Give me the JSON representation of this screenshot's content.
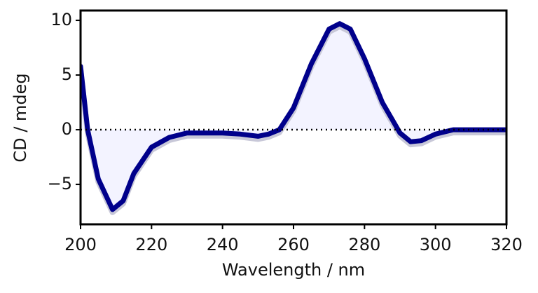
{
  "chart_data": {
    "type": "line",
    "xlabel": "Wavelength / nm",
    "ylabel": "CD / mdeg",
    "x": [
      200,
      202,
      205,
      209,
      212,
      215,
      220,
      225,
      230,
      240,
      245,
      250,
      253,
      256,
      260,
      265,
      270,
      273,
      276,
      280,
      285,
      290,
      293,
      296,
      300,
      305,
      310,
      320
    ],
    "series": [
      {
        "color": "#00008b",
        "fill": "#f3f3ff",
        "values": [
          5.8,
          0.0,
          -4.5,
          -7.3,
          -6.5,
          -4.0,
          -1.6,
          -0.7,
          -0.3,
          -0.3,
          -0.4,
          -0.6,
          -0.4,
          0.0,
          2.0,
          6.0,
          9.2,
          9.7,
          9.2,
          6.5,
          2.5,
          -0.3,
          -1.1,
          -1.0,
          -0.4,
          0.0,
          0.0,
          0.0
        ]
      }
    ],
    "xlim": [
      200,
      320
    ],
    "ylim": [
      -8.65,
      10.9
    ],
    "xticks": [
      200,
      220,
      240,
      260,
      280,
      300,
      320
    ],
    "yticks": [
      {
        "value": -5,
        "label": "−5"
      },
      0,
      5,
      10
    ],
    "hline": 0
  }
}
